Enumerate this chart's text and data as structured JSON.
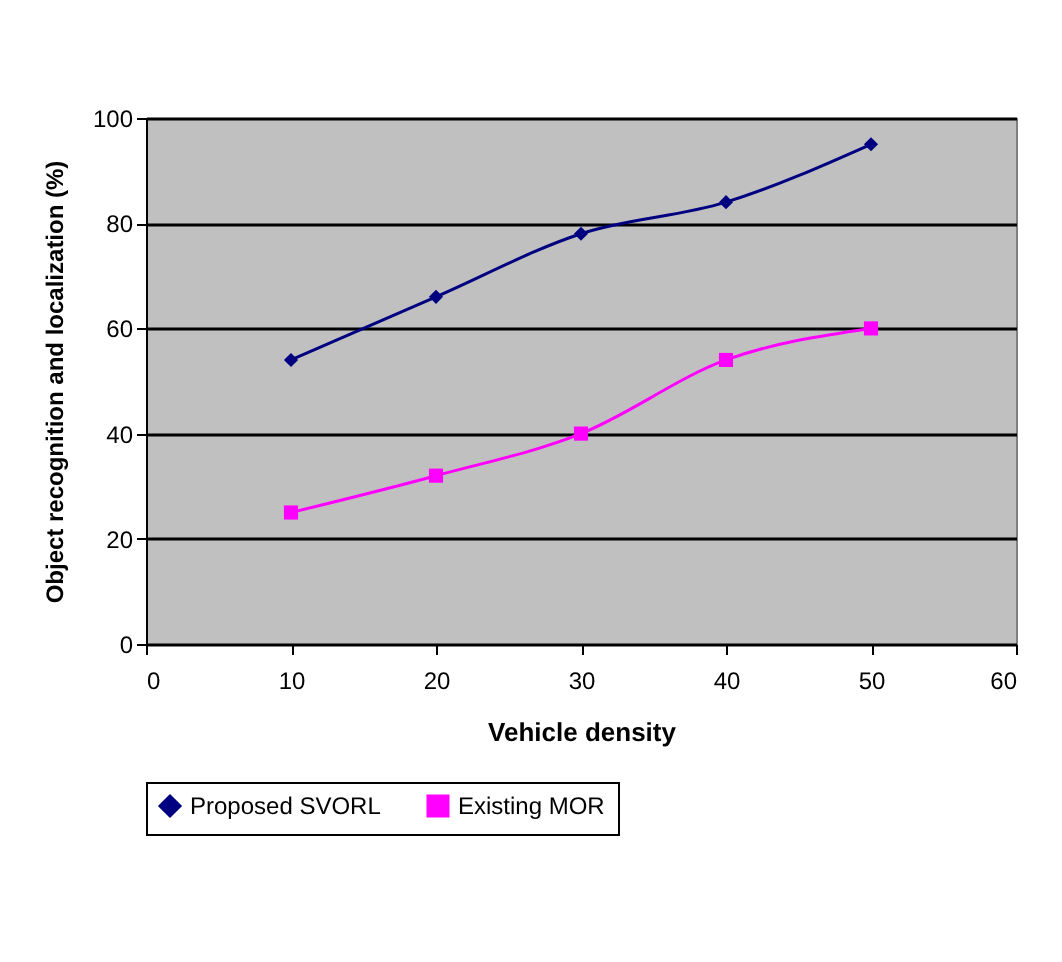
{
  "chart_data": {
    "type": "line",
    "xlabel": "Vehicle density",
    "ylabel": "Object recognition and localization (%)",
    "x": [
      10,
      20,
      30,
      40,
      50
    ],
    "series": [
      {
        "name": "Proposed SVORL",
        "color": "#000080",
        "marker": "diamond",
        "values": [
          54,
          66,
          78,
          84,
          95
        ]
      },
      {
        "name": "Existing MOR",
        "color": "#ff00ff",
        "marker": "square",
        "values": [
          25,
          32,
          40,
          54,
          60
        ]
      }
    ],
    "xlim": [
      0,
      60
    ],
    "xticks": [
      0,
      10,
      20,
      30,
      40,
      50,
      60
    ],
    "ylim": [
      0,
      100
    ],
    "yticks": [
      0,
      20,
      40,
      60,
      80,
      100
    ],
    "grid": "y",
    "legend": "bottom",
    "line_style": "solid"
  }
}
